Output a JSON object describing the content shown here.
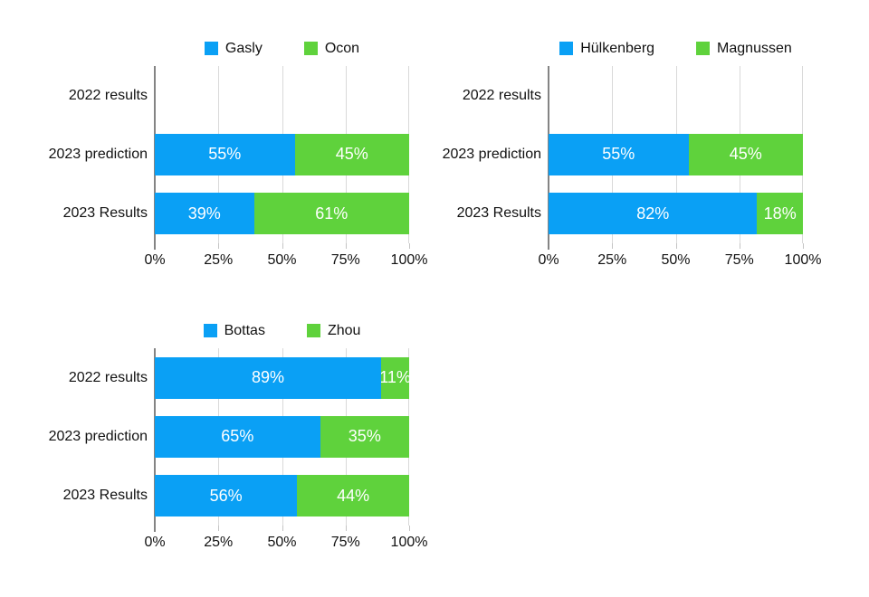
{
  "page": {
    "background": "#ffffff"
  },
  "colors": {
    "series_blue": "#0aa0f5",
    "series_green": "#5fd23c",
    "gridline": "#d9d9d9",
    "axis_line": "#848484",
    "text": "#111111",
    "value_label_text": "#ffffff"
  },
  "chart_data": [
    {
      "type": "bar",
      "orientation": "horizontal_stacked",
      "title": "",
      "categories": [
        "2022 results",
        "2023 prediction",
        "2023 Results"
      ],
      "series": [
        {
          "name": "Gasly",
          "color": "#0aa0f5",
          "values": [
            null,
            55,
            39
          ],
          "labels": [
            "",
            "55%",
            "39%"
          ]
        },
        {
          "name": "Ocon",
          "color": "#5fd23c",
          "values": [
            null,
            45,
            61
          ],
          "labels": [
            "",
            "45%",
            "61%"
          ]
        }
      ],
      "x_ticks": [
        "0%",
        "25%",
        "50%",
        "75%",
        "100%"
      ],
      "xlim": [
        0,
        100
      ],
      "legend_position": "top",
      "grid": true
    },
    {
      "type": "bar",
      "orientation": "horizontal_stacked",
      "title": "",
      "categories": [
        "2022 results",
        "2023 prediction",
        "2023 Results"
      ],
      "series": [
        {
          "name": "Hülkenberg",
          "color": "#0aa0f5",
          "values": [
            null,
            55,
            82
          ],
          "labels": [
            "",
            "55%",
            "82%"
          ]
        },
        {
          "name": "Magnussen",
          "color": "#5fd23c",
          "values": [
            null,
            45,
            18
          ],
          "labels": [
            "",
            "45%",
            "18%"
          ]
        }
      ],
      "x_ticks": [
        "0%",
        "25%",
        "50%",
        "75%",
        "100%"
      ],
      "xlim": [
        0,
        100
      ],
      "legend_position": "top",
      "grid": true
    },
    {
      "type": "bar",
      "orientation": "horizontal_stacked",
      "title": "",
      "categories": [
        "2022 results",
        "2023 prediction",
        "2023 Results"
      ],
      "series": [
        {
          "name": "Bottas",
          "color": "#0aa0f5",
          "values": [
            89,
            65,
            56
          ],
          "labels": [
            "89%",
            "65%",
            "56%"
          ]
        },
        {
          "name": "Zhou",
          "color": "#5fd23c",
          "values": [
            11,
            35,
            44
          ],
          "labels": [
            "11%",
            "35%",
            "44%"
          ]
        }
      ],
      "x_ticks": [
        "0%",
        "25%",
        "50%",
        "75%",
        "100%"
      ],
      "xlim": [
        0,
        100
      ],
      "legend_position": "top",
      "grid": true
    }
  ]
}
